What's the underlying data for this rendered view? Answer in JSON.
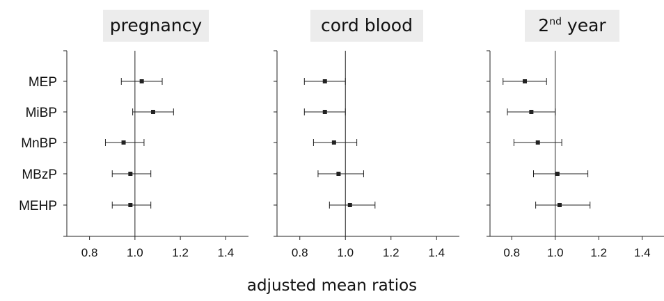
{
  "xlabel": "adjusted mean ratios",
  "panel_titles": [
    {
      "text": "pregnancy",
      "sup": "",
      "suffix": ""
    },
    {
      "text": "cord blood",
      "sup": "",
      "suffix": ""
    },
    {
      "text": "2",
      "sup": "nd",
      "suffix": " year"
    }
  ],
  "chart_data": [
    {
      "type": "scatter",
      "title": "pregnancy",
      "categories": [
        "MEP",
        "MiBP",
        "MnBP",
        "MBzP",
        "MEHP"
      ],
      "estimate": [
        1.03,
        1.08,
        0.95,
        0.98,
        0.98
      ],
      "ci_low": [
        0.94,
        0.99,
        0.87,
        0.9,
        0.9
      ],
      "ci_high": [
        1.12,
        1.17,
        1.04,
        1.07,
        1.07
      ],
      "xlim": [
        0.7,
        1.5
      ],
      "xticks": [
        "0.8",
        "1.0",
        "1.2",
        "1.4"
      ],
      "reference_line": 1.0
    },
    {
      "type": "scatter",
      "title": "cord blood",
      "categories": [
        "MEP",
        "MiBP",
        "MnBP",
        "MBzP",
        "MEHP"
      ],
      "estimate": [
        0.91,
        0.91,
        0.95,
        0.97,
        1.02
      ],
      "ci_low": [
        0.82,
        0.82,
        0.86,
        0.88,
        0.93
      ],
      "ci_high": [
        1.0,
        1.0,
        1.05,
        1.08,
        1.13
      ],
      "xlim": [
        0.7,
        1.5
      ],
      "xticks": [
        "0.8",
        "1.0",
        "1.2",
        "1.4"
      ],
      "reference_line": 1.0
    },
    {
      "type": "scatter",
      "title": "2nd year",
      "categories": [
        "MEP",
        "MiBP",
        "MnBP",
        "MBzP",
        "MEHP"
      ],
      "estimate": [
        0.86,
        0.89,
        0.92,
        1.01,
        1.02
      ],
      "ci_low": [
        0.76,
        0.78,
        0.81,
        0.9,
        0.91
      ],
      "ci_high": [
        0.96,
        1.0,
        1.03,
        1.15,
        1.16
      ],
      "xlim": [
        0.7,
        1.5
      ],
      "xticks": [
        "0.8",
        "1.0",
        "1.2",
        "1.4"
      ],
      "reference_line": 1.0
    }
  ]
}
